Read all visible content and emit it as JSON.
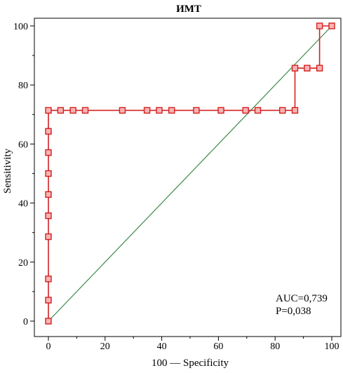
{
  "chart_data": {
    "type": "line",
    "title": "ИМТ",
    "xlabel": "100 — Specificity",
    "ylabel": "Sensitivity",
    "xlim": [
      0,
      100
    ],
    "ylim": [
      0,
      100
    ],
    "x_ticks": [
      0,
      20,
      40,
      60,
      80,
      100
    ],
    "y_ticks": [
      0,
      20,
      40,
      60,
      80,
      100
    ],
    "grid": false,
    "annotations": [
      "AUC=0,739",
      "P=0,038"
    ],
    "colors": {
      "roc_curve": "#d42020",
      "marker_fill": "#f7b4b4",
      "diagonal": "#3c8a4a",
      "axis": "#000000"
    },
    "series": [
      {
        "style": "step-with-square-markers",
        "points": [
          [
            0,
            0
          ],
          [
            0,
            7.1
          ],
          [
            0,
            14.3
          ],
          [
            0,
            28.6
          ],
          [
            0,
            35.7
          ],
          [
            0,
            42.9
          ],
          [
            0,
            50
          ],
          [
            0,
            57.1
          ],
          [
            0,
            64.3
          ],
          [
            0,
            71.4
          ],
          [
            4.3,
            71.4
          ],
          [
            8.7,
            71.4
          ],
          [
            13,
            71.4
          ],
          [
            26.1,
            71.4
          ],
          [
            34.8,
            71.4
          ],
          [
            39.1,
            71.4
          ],
          [
            43.5,
            71.4
          ],
          [
            52.2,
            71.4
          ],
          [
            60.9,
            71.4
          ],
          [
            69.6,
            71.4
          ],
          [
            73.9,
            71.4
          ],
          [
            82.6,
            71.4
          ],
          [
            87,
            71.4
          ],
          [
            87,
            85.7
          ],
          [
            91.3,
            85.7
          ],
          [
            95.7,
            85.7
          ],
          [
            95.7,
            100
          ],
          [
            100,
            100
          ]
        ]
      },
      {
        "style": "reference-diagonal",
        "points": [
          [
            0,
            0
          ],
          [
            100,
            100
          ]
        ]
      }
    ]
  }
}
